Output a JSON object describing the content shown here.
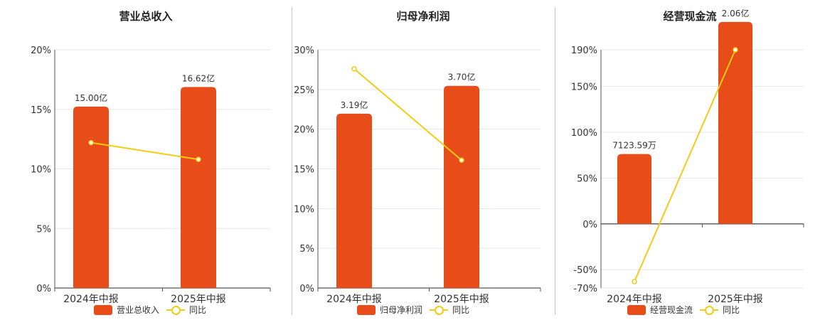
{
  "colors": {
    "bar": "#e84c19",
    "line": "#f2cc14",
    "grid": "#e6e6e6",
    "axis": "#555555",
    "text": "#333333"
  },
  "chart_data": [
    {
      "type": "bar",
      "title": "营业总收入",
      "categories": [
        "2024年中报",
        "2025年中报"
      ],
      "bar_series": {
        "name": "营业总收入",
        "values": [
          15.0,
          16.62
        ],
        "unit": "亿",
        "labels": [
          "15.00亿",
          "16.62亿"
        ]
      },
      "line_series": {
        "name": "同比",
        "values": [
          12.2,
          10.8
        ]
      },
      "axis": {
        "min": 0,
        "max": 20,
        "ticks": [
          0,
          5,
          10,
          15,
          20
        ],
        "tick_labels": [
          "0%",
          "5%",
          "10%",
          "15%",
          "20%"
        ]
      },
      "bar_axis_max": 19.7
    },
    {
      "type": "bar",
      "title": "归母净利润",
      "categories": [
        "2024年中报",
        "2025年中报"
      ],
      "bar_series": {
        "name": "归母净利润",
        "values": [
          3.19,
          3.7
        ],
        "unit": "亿",
        "labels": [
          "3.19亿",
          "3.70亿"
        ]
      },
      "line_series": {
        "name": "同比",
        "values": [
          27.6,
          16.1
        ]
      },
      "axis": {
        "min": 0,
        "max": 30,
        "ticks": [
          0,
          5,
          10,
          15,
          20,
          25,
          30
        ],
        "tick_labels": [
          "0%",
          "5%",
          "10%",
          "15%",
          "20%",
          "25%",
          "30%"
        ]
      },
      "bar_axis_max": 4.36
    },
    {
      "type": "bar",
      "title": "经营现金流",
      "categories": [
        "2024年中报",
        "2025年中报"
      ],
      "bar_series": {
        "name": "经营现金流",
        "values": [
          0.712359,
          2.06
        ],
        "unit": "亿",
        "labels": [
          "7123.59万",
          "2.06亿"
        ]
      },
      "line_series": {
        "name": "同比",
        "values": [
          -63,
          190
        ]
      },
      "axis": {
        "min": -70,
        "max": 190,
        "ticks": [
          -70,
          -50,
          0,
          50,
          100,
          150,
          190
        ],
        "tick_labels": [
          "-70%",
          "-50%",
          "0%",
          "50%",
          "100%",
          "150%",
          "190%"
        ]
      },
      "bar_axis_max": 2.43
    }
  ]
}
